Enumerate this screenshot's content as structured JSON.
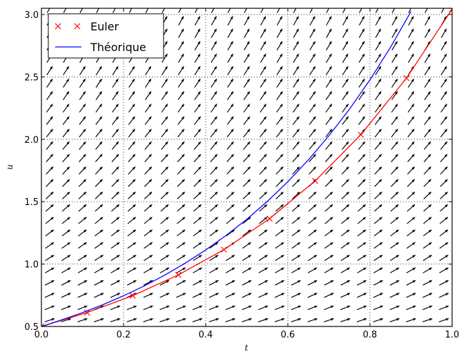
{
  "chart_data": {
    "type": "line",
    "title": "",
    "xlabel": "t",
    "ylabel": "u",
    "xlim": [
      0.0,
      1.0
    ],
    "ylim": [
      0.5,
      3.05
    ],
    "x_ticks": [
      "0.0",
      "0.2",
      "0.4",
      "0.6",
      "0.8",
      "1.0"
    ],
    "y_ticks": [
      "0.5",
      "1.0",
      "1.5",
      "2.0",
      "2.5",
      "3.0"
    ],
    "grid": true,
    "legend_position": "top-left",
    "direction_field": {
      "equation": "du/dt = 2u",
      "grid_t_step": 0.04,
      "grid_u_step": 0.1
    },
    "series": [
      {
        "name": "Euler",
        "style": "line-with-x-markers",
        "color": "#ff0000",
        "x": [
          0.0,
          0.1111,
          0.2222,
          0.3333,
          0.4444,
          0.5556,
          0.6667,
          0.7778,
          0.8889,
          1.0
        ],
        "y": [
          0.5,
          0.611,
          0.747,
          0.913,
          1.116,
          1.364,
          1.667,
          2.037,
          2.49,
          3.043
        ]
      },
      {
        "name": "Théorique",
        "style": "line",
        "color": "#0000ff",
        "x": [
          0.0,
          0.05,
          0.1,
          0.15,
          0.2,
          0.25,
          0.3,
          0.35,
          0.4,
          0.45,
          0.5,
          0.55,
          0.6,
          0.65,
          0.7,
          0.75,
          0.8,
          0.85,
          0.9
        ],
        "y": [
          0.5,
          0.553,
          0.611,
          0.675,
          0.746,
          0.824,
          0.911,
          1.007,
          1.113,
          1.23,
          1.359,
          1.502,
          1.66,
          1.835,
          2.028,
          2.241,
          2.477,
          2.737,
          3.025
        ]
      }
    ]
  }
}
